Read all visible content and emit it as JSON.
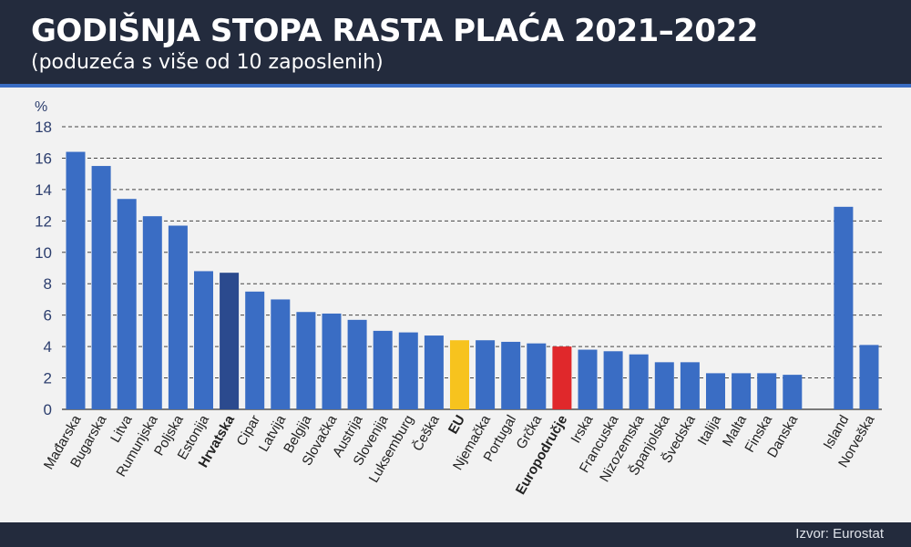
{
  "header": {
    "title": "GODIŠNJA STOPA RASTA PLAĆA 2021–2022",
    "subtitle": "(poduzeća s više od 10 zaposlenih)"
  },
  "footer": {
    "source": "Izvor: Eurostat"
  },
  "colors": {
    "default": "#3a6dc4",
    "Hrvatska": "#2b4a8e",
    "EU": "#f7c31e",
    "Europodručje": "#e0282b",
    "axis_text": "#2c3e6e",
    "grid": "#444444"
  },
  "chart_data": {
    "type": "bar",
    "ylabel": "%",
    "ylim": [
      0,
      18
    ],
    "yticks": [
      0,
      2,
      4,
      6,
      8,
      10,
      12,
      14,
      16,
      18
    ],
    "grid": true,
    "categories": [
      "Mađarska",
      "Bugarska",
      "Litva",
      "Rumunjska",
      "Poljska",
      "Estonija",
      "Hrvatska",
      "Cipar",
      "Latvija",
      "Belgija",
      "Slovačka",
      "Austrija",
      "Slovenija",
      "Luksemburg",
      "Češka",
      "EU",
      "Njemačka",
      "Portugal",
      "Grčka",
      "Europodručje",
      "Irska",
      "Francuska",
      "Nizozemska",
      "Španjolska",
      "Švedska",
      "Italija",
      "Malta",
      "Finska",
      "Danska",
      "Island",
      "Norveška"
    ],
    "values": [
      16.4,
      15.5,
      13.4,
      12.3,
      11.7,
      8.8,
      8.7,
      7.5,
      7.0,
      6.2,
      6.1,
      5.7,
      5.0,
      4.9,
      4.7,
      4.4,
      4.4,
      4.3,
      4.2,
      4.0,
      3.8,
      3.7,
      3.5,
      3.0,
      3.0,
      2.3,
      2.3,
      2.3,
      2.2,
      12.9,
      4.1
    ],
    "bold_categories": [
      "Hrvatska",
      "EU",
      "Europodručje"
    ]
  }
}
